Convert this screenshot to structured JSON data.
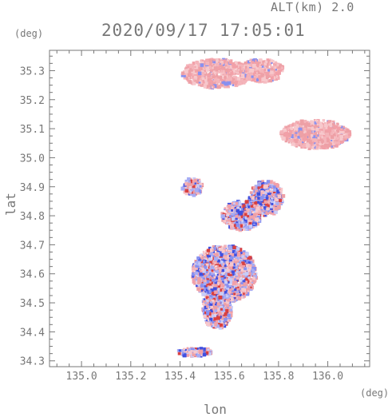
{
  "header": {
    "alt_label": "ALT(km) 2.0",
    "timestamp": "2020/09/17 17:05:01"
  },
  "chart_data": {
    "type": "heatmap",
    "title": "2020/09/17 17:05:01",
    "subtitle": "ALT(km) 2.0",
    "xlabel": "lon",
    "ylabel": "lat",
    "x_unit": "(deg)",
    "y_unit": "(deg)",
    "xlim": [
      134.87,
      136.17
    ],
    "ylim": [
      34.28,
      35.37
    ],
    "x_ticks": [
      "135.0",
      "135.2",
      "135.4",
      "135.6",
      "135.8",
      "136.0"
    ],
    "y_ticks": [
      "34.3",
      "34.4",
      "34.5",
      "34.6",
      "34.7",
      "34.8",
      "34.9",
      "35.0",
      "35.1",
      "35.2",
      "35.3"
    ],
    "grid": false,
    "colors": {
      "positive": "#f2a0a8",
      "strong_positive": "#d94040",
      "negative": "#8890f0",
      "strong_negative": "#4050e0",
      "axis": "#777777"
    },
    "echo_regions": [
      {
        "lon": 135.55,
        "lat": 35.29,
        "rx": 0.14,
        "ry": 0.05,
        "sign": "positive"
      },
      {
        "lon": 135.73,
        "lat": 35.3,
        "rx": 0.09,
        "ry": 0.04,
        "sign": "positive"
      },
      {
        "lon": 135.95,
        "lat": 35.08,
        "rx": 0.14,
        "ry": 0.05,
        "sign": "positive"
      },
      {
        "lon": 135.58,
        "lat": 34.6,
        "rx": 0.13,
        "ry": 0.1,
        "sign": "mixed"
      },
      {
        "lon": 135.55,
        "lat": 34.48,
        "rx": 0.06,
        "ry": 0.07,
        "sign": "mixed"
      },
      {
        "lon": 135.75,
        "lat": 34.86,
        "rx": 0.07,
        "ry": 0.06,
        "sign": "mixed"
      },
      {
        "lon": 135.65,
        "lat": 34.8,
        "rx": 0.08,
        "ry": 0.05,
        "sign": "mixed"
      },
      {
        "lon": 135.45,
        "lat": 34.9,
        "rx": 0.04,
        "ry": 0.03,
        "sign": "mixed"
      },
      {
        "lon": 135.46,
        "lat": 34.33,
        "rx": 0.07,
        "ry": 0.015,
        "sign": "mixed"
      }
    ]
  }
}
